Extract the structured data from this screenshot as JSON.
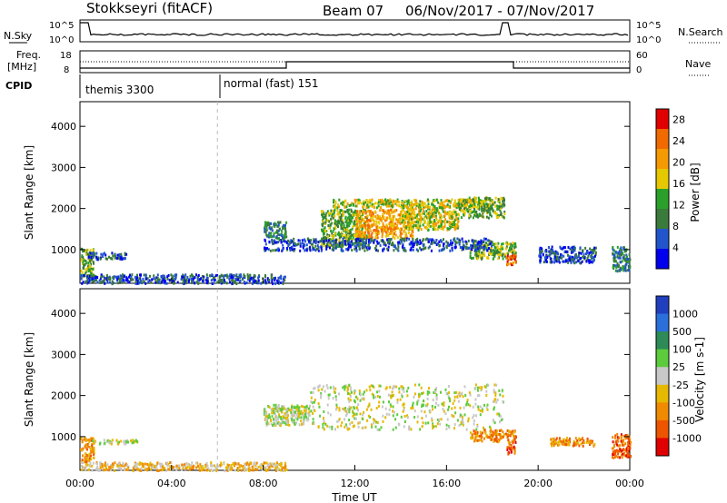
{
  "header": {
    "title": "Stokkseyri (fitACF)",
    "beam": "Beam 07",
    "date_range": "06/Nov/2017 - 07/Nov/2017"
  },
  "labels": {
    "nsky": "N.Sky",
    "nsearch": "N.Search",
    "freq_line1": "Freq.",
    "freq_line2": "[MHz]",
    "nave": "Nave",
    "cpid": "CPID",
    "cpid_mode_1": "themis 3300",
    "cpid_mode_2": "normal (fast) 151"
  },
  "noise_panel": {
    "ticks": [
      "10^5",
      "10^0"
    ]
  },
  "freq_panel": {
    "left_ticks": [
      "18",
      "8"
    ],
    "right_ticks": [
      "60",
      "0"
    ]
  },
  "colors": {
    "power_scale": [
      "#0000ee",
      "#2255cc",
      "#3a7a3a",
      "#2aa02a",
      "#e6c800",
      "#f59a00",
      "#f06a00",
      "#e00000"
    ],
    "velocity_scale": [
      "#1f3fbf",
      "#2b6fdb",
      "#2e8b57",
      "#5ccc3c",
      "#c8c8c8",
      "#e6b800",
      "#f08a00",
      "#ee5500",
      "#e00000"
    ]
  },
  "chart_data": [
    {
      "type": "heatmap",
      "name": "power",
      "xlabel": "Time UT",
      "ylabel": "Slant Range [km]",
      "x_ticks": [
        "00:00",
        "04:00",
        "08:00",
        "12:00",
        "16:00",
        "20:00",
        "00:00"
      ],
      "x_range_hours": [
        0,
        24
      ],
      "y_ticks": [
        1000,
        2000,
        3000,
        4000
      ],
      "ylim": [
        180,
        4600
      ],
      "colorbar": {
        "label": "Power [dB]",
        "ticks": [
          4,
          8,
          12,
          16,
          20,
          24,
          28
        ],
        "range": [
          0,
          30
        ]
      },
      "patches": [
        {
          "t0": 0.0,
          "t1": 0.6,
          "r0": 350,
          "r1": 1050,
          "level": 3
        },
        {
          "t0": 0.3,
          "t1": 2.0,
          "r0": 780,
          "r1": 950,
          "level": 1
        },
        {
          "t0": 0.0,
          "t1": 9.0,
          "r0": 200,
          "r1": 420,
          "level": 1
        },
        {
          "t0": 8.0,
          "t1": 9.0,
          "r0": 1300,
          "r1": 1700,
          "level": 2
        },
        {
          "t0": 10.5,
          "t1": 12.5,
          "r0": 1100,
          "r1": 2000,
          "level": 3
        },
        {
          "t0": 12.0,
          "t1": 14.5,
          "r0": 1300,
          "r1": 2000,
          "level": 5
        },
        {
          "t0": 14.0,
          "t1": 16.5,
          "r0": 1500,
          "r1": 2100,
          "level": 4
        },
        {
          "t0": 11.0,
          "t1": 18.0,
          "r0": 2050,
          "r1": 2250,
          "level": 4
        },
        {
          "t0": 16.5,
          "t1": 18.5,
          "r0": 1800,
          "r1": 2300,
          "level": 3
        },
        {
          "t0": 17.0,
          "t1": 19.0,
          "r0": 800,
          "r1": 1200,
          "level": 3
        },
        {
          "t0": 18.6,
          "t1": 19.0,
          "r0": 650,
          "r1": 900,
          "level": 6
        },
        {
          "t0": 8.0,
          "t1": 18.0,
          "r0": 1000,
          "r1": 1300,
          "level": 1
        },
        {
          "t0": 20.0,
          "t1": 22.5,
          "r0": 700,
          "r1": 1100,
          "level": 1
        },
        {
          "t0": 23.2,
          "t1": 24.0,
          "r0": 500,
          "r1": 1100,
          "level": 2
        }
      ]
    },
    {
      "type": "heatmap",
      "name": "velocity",
      "xlabel": "Time UT",
      "ylabel": "Slant Range [km]",
      "x_ticks": [
        "00:00",
        "04:00",
        "08:00",
        "12:00",
        "16:00",
        "20:00",
        "00:00"
      ],
      "x_range_hours": [
        0,
        24
      ],
      "y_ticks": [
        1000,
        2000,
        3000,
        4000
      ],
      "ylim": [
        180,
        4600
      ],
      "colorbar": {
        "label": "Velocity [m s-1]",
        "ticks": [
          1000,
          500,
          100,
          25,
          -25,
          -100,
          -500,
          -1000
        ]
      },
      "patches": [
        {
          "t0": 8.0,
          "t1": 10.0,
          "r0": 1300,
          "r1": 1800,
          "level": 4
        },
        {
          "t0": 10.0,
          "t1": 18.5,
          "r0": 1200,
          "r1": 2300,
          "level": 4
        },
        {
          "t0": 0.0,
          "t1": 0.6,
          "r0": 400,
          "r1": 1000,
          "level": 6
        },
        {
          "t0": 0.5,
          "t1": 2.5,
          "r0": 850,
          "r1": 950,
          "level": 4
        },
        {
          "t0": 0.0,
          "t1": 9.0,
          "r0": 200,
          "r1": 400,
          "level": 5
        },
        {
          "t0": 17.0,
          "t1": 19.0,
          "r0": 900,
          "r1": 1200,
          "level": 6
        },
        {
          "t0": 18.6,
          "t1": 19.0,
          "r0": 600,
          "r1": 900,
          "level": 7
        },
        {
          "t0": 20.5,
          "t1": 22.5,
          "r0": 800,
          "r1": 1000,
          "level": 6
        },
        {
          "t0": 23.2,
          "t1": 24.0,
          "r0": 500,
          "r1": 1100,
          "level": 7
        }
      ]
    }
  ]
}
